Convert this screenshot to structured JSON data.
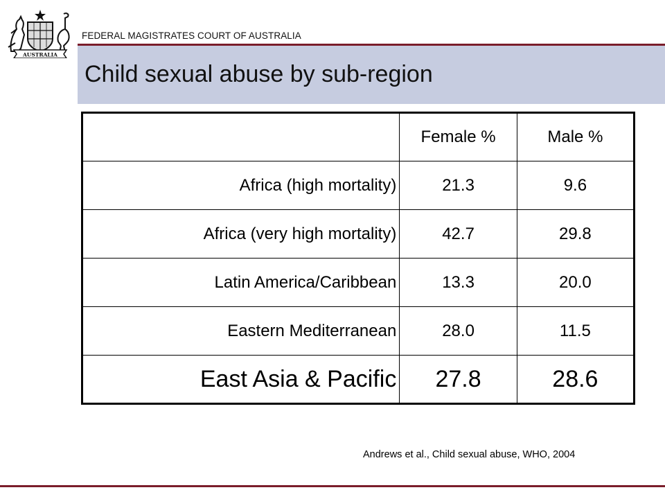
{
  "header": {
    "organization": "FEDERAL MAGISTRATES COURT OF AUSTRALIA",
    "crest_motto": "AUSTRALIA",
    "accent_color": "#7a1d2a",
    "title_band_color": "#c6cce0"
  },
  "slide": {
    "title": "Child sexual abuse by sub-region"
  },
  "table": {
    "columns": [
      "",
      "Female %",
      "Male %"
    ],
    "rows": [
      {
        "region": "Africa (high mortality)",
        "female": "21.3",
        "male": "9.6"
      },
      {
        "region": "Africa (very high mortality)",
        "female": "42.7",
        "male": "29.8"
      },
      {
        "region": "Latin America/Caribbean",
        "female": "13.3",
        "male": "20.0"
      },
      {
        "region": "Eastern Mediterranean",
        "female": "28.0",
        "male": "11.5"
      },
      {
        "region": "East Asia & Pacific",
        "female": "27.8",
        "male": "28.6"
      }
    ]
  },
  "footer": {
    "citation": "Andrews et al., Child sexual abuse, WHO, 2004"
  }
}
